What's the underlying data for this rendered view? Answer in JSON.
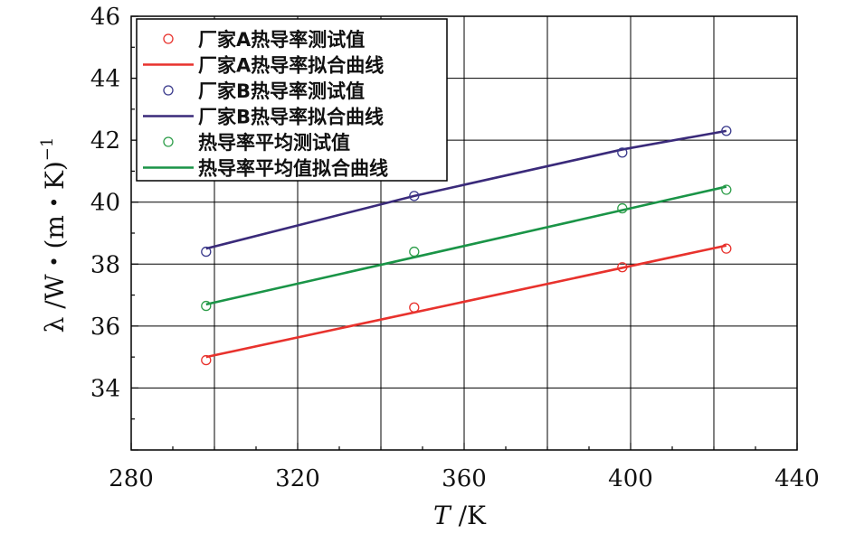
{
  "chart_data": {
    "type": "scatter",
    "xlabel_italic": "T",
    "xlabel_rest": " /K",
    "ylabel_main": "λ /W・(m・K)",
    "ylabel_sup": "−1",
    "xlim": [
      280,
      440
    ],
    "ylim": [
      32,
      46
    ],
    "x_ticks": [
      280,
      320,
      360,
      400,
      440
    ],
    "y_ticks": [
      34,
      36,
      38,
      40,
      42,
      44,
      46
    ],
    "grid": true,
    "legend_position": "top-left",
    "series": [
      {
        "name": "厂家A热导率测试值",
        "kind": "markers",
        "color": "#e8322d",
        "x": [
          298,
          348,
          398,
          423
        ],
        "y": [
          34.9,
          36.6,
          37.9,
          38.5
        ]
      },
      {
        "name": "厂家A热导率拟合曲线",
        "kind": "line",
        "color": "#e8322d",
        "x": [
          298,
          423
        ],
        "y": [
          35.0,
          38.6
        ]
      },
      {
        "name": "厂家B热导率测试值",
        "kind": "markers",
        "color": "#3a3a8c",
        "x": [
          298,
          348,
          398,
          423
        ],
        "y": [
          38.4,
          40.2,
          41.6,
          42.3
        ]
      },
      {
        "name": "厂家B热导率拟合曲线",
        "kind": "line",
        "color": "#3a2a7a",
        "x": [
          298,
          348,
          398,
          423
        ],
        "y": [
          38.5,
          40.2,
          41.7,
          42.3
        ]
      },
      {
        "name": "热导率平均测试值",
        "kind": "markers",
        "color": "#2e9e4a",
        "x": [
          298,
          348,
          398,
          423
        ],
        "y": [
          36.65,
          38.4,
          39.8,
          40.4
        ]
      },
      {
        "name": "热导率平均值拟合曲线",
        "kind": "line",
        "color": "#1a9447",
        "x": [
          298,
          423
        ],
        "y": [
          36.7,
          40.5
        ]
      }
    ]
  }
}
